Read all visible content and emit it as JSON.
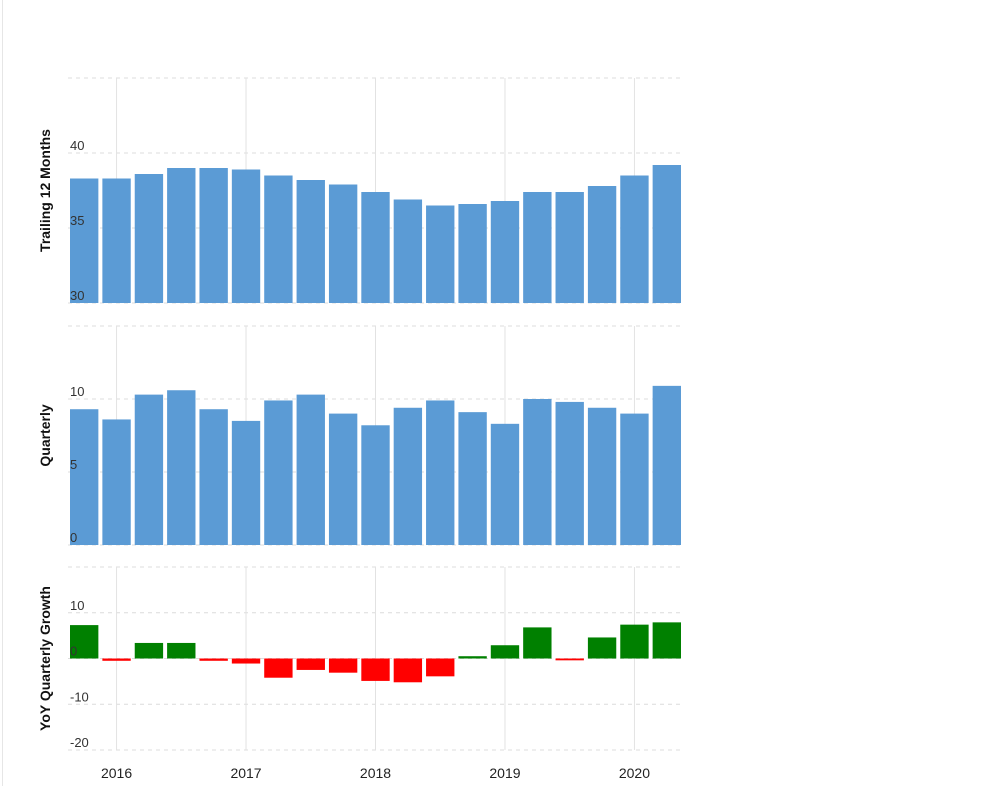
{
  "chart_data": [
    {
      "type": "bar",
      "ylabel": "Trailing 12 Months",
      "ylim": [
        30,
        45
      ],
      "yticks": [
        30,
        35,
        40
      ],
      "grid": true,
      "colors": {
        "bar": "#5b9bd5"
      },
      "values": [
        38.3,
        38.3,
        38.6,
        39.0,
        39.0,
        38.9,
        38.5,
        38.2,
        37.9,
        37.4,
        36.9,
        36.5,
        36.6,
        36.8,
        37.4,
        37.4,
        37.8,
        38.5,
        39.2
      ]
    },
    {
      "type": "bar",
      "ylabel": "Quarterly",
      "ylim": [
        0,
        15
      ],
      "yticks": [
        0,
        5,
        10
      ],
      "grid": true,
      "colors": {
        "bar": "#5b9bd5"
      },
      "values": [
        9.3,
        8.6,
        10.3,
        10.6,
        9.3,
        8.5,
        9.9,
        10.3,
        9.0,
        8.2,
        9.4,
        9.9,
        9.1,
        8.3,
        10.0,
        9.8,
        9.4,
        9.0,
        10.9
      ]
    },
    {
      "type": "bar",
      "ylabel": "YoY Quarterly Growth",
      "ylim": [
        -20,
        20
      ],
      "yticks": [
        -20,
        -10,
        0,
        10
      ],
      "grid": true,
      "colors": {
        "positive": "#008000",
        "negative": "#ff0000"
      },
      "values": [
        7.3,
        -0.5,
        3.4,
        3.4,
        -0.5,
        -1.1,
        -4.2,
        -2.5,
        -3.1,
        -4.9,
        -5.2,
        -3.9,
        0.5,
        2.9,
        6.8,
        -0.4,
        4.6,
        7.4,
        7.9
      ]
    }
  ],
  "x_axis": {
    "labels": [
      "2016",
      "2017",
      "2018",
      "2019",
      "2020"
    ],
    "label_positions": [
      1.5,
      5.5,
      9.5,
      13.5,
      17.5
    ],
    "year_lines": [
      1.5,
      5.5,
      9.5,
      13.5,
      17.5
    ]
  }
}
